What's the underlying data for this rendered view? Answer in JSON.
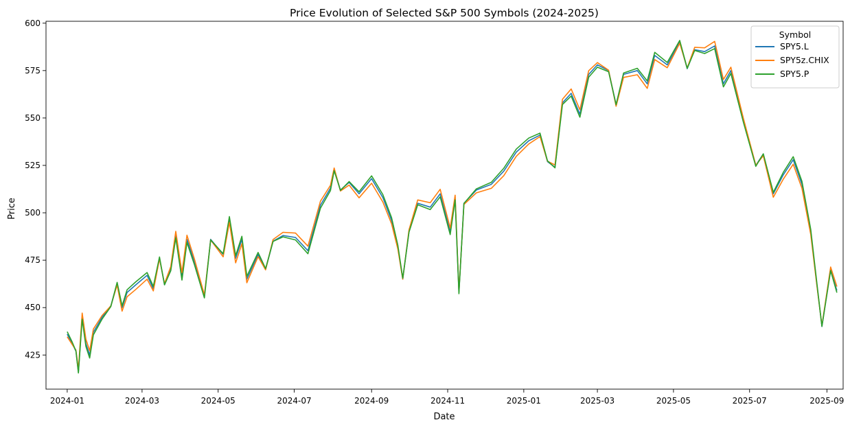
{
  "chart_data": {
    "type": "line",
    "title": "Price Evolution of Selected S&P 500 Symbols (2024-2025)",
    "xlabel": "Date",
    "ylabel": "Price",
    "xlim": [
      "2023-12-15",
      "2025-09-14"
    ],
    "ylim": [
      407,
      601
    ],
    "x_ticks": [
      "2024-01",
      "2024-03",
      "2024-05",
      "2024-07",
      "2024-09",
      "2024-11",
      "2025-01",
      "2025-03",
      "2025-05",
      "2025-07",
      "2025-09"
    ],
    "y_ticks": [
      425,
      450,
      475,
      500,
      525,
      550,
      575,
      600
    ],
    "grid": false,
    "legend": {
      "title": "Symbol",
      "placement": "top-right"
    },
    "series": [
      {
        "name": "SPY5.L",
        "color": "#1f77b4",
        "points": [
          [
            "2024-01-01",
            436
          ],
          [
            "2024-01-05",
            431
          ],
          [
            "2024-01-08",
            427
          ],
          [
            "2024-01-10",
            416
          ],
          [
            "2024-01-13",
            445
          ],
          [
            "2024-01-16",
            431
          ],
          [
            "2024-01-19",
            425
          ],
          [
            "2024-01-22",
            437
          ],
          [
            "2024-01-29",
            445
          ],
          [
            "2024-02-05",
            451
          ],
          [
            "2024-02-10",
            463
          ],
          [
            "2024-02-14",
            450
          ],
          [
            "2024-02-18",
            458
          ],
          [
            "2024-02-25",
            462
          ],
          [
            "2024-03-05",
            467
          ],
          [
            "2024-03-10",
            460
          ],
          [
            "2024-03-15",
            476
          ],
          [
            "2024-03-19",
            462
          ],
          [
            "2024-03-24",
            470
          ],
          [
            "2024-03-28",
            488
          ],
          [
            "2024-04-02",
            466
          ],
          [
            "2024-04-06",
            486
          ],
          [
            "2024-04-12",
            474
          ],
          [
            "2024-04-20",
            456
          ],
          [
            "2024-04-25",
            486
          ],
          [
            "2024-05-05",
            478
          ],
          [
            "2024-05-10",
            497
          ],
          [
            "2024-05-15",
            476
          ],
          [
            "2024-05-20",
            486
          ],
          [
            "2024-05-24",
            465
          ],
          [
            "2024-06-02",
            478
          ],
          [
            "2024-06-08",
            470
          ],
          [
            "2024-06-14",
            485
          ],
          [
            "2024-06-22",
            488
          ],
          [
            "2024-07-02",
            487
          ],
          [
            "2024-07-12",
            480
          ],
          [
            "2024-07-22",
            504
          ],
          [
            "2024-07-30",
            513
          ],
          [
            "2024-08-02",
            523
          ],
          [
            "2024-08-07",
            512
          ],
          [
            "2024-08-14",
            516
          ],
          [
            "2024-08-22",
            510
          ],
          [
            "2024-09-01",
            518
          ],
          [
            "2024-09-10",
            508
          ],
          [
            "2024-09-17",
            496
          ],
          [
            "2024-09-22",
            482
          ],
          [
            "2024-09-26",
            465
          ],
          [
            "2024-10-01",
            490
          ],
          [
            "2024-10-08",
            505
          ],
          [
            "2024-10-18",
            503
          ],
          [
            "2024-10-26",
            510
          ],
          [
            "2024-11-03",
            490
          ],
          [
            "2024-11-07",
            508
          ],
          [
            "2024-11-10",
            458
          ],
          [
            "2024-11-14",
            505
          ],
          [
            "2024-11-24",
            512
          ],
          [
            "2024-12-06",
            515
          ],
          [
            "2024-12-16",
            522
          ],
          [
            "2024-12-26",
            532
          ],
          [
            "2025-01-05",
            538
          ],
          [
            "2025-01-14",
            541
          ],
          [
            "2025-01-20",
            527
          ],
          [
            "2025-01-26",
            524
          ],
          [
            "2025-02-01",
            558
          ],
          [
            "2025-02-08",
            563
          ],
          [
            "2025-02-15",
            552
          ],
          [
            "2025-02-22",
            573
          ],
          [
            "2025-03-01",
            578
          ],
          [
            "2025-03-10",
            575
          ],
          [
            "2025-03-16",
            557
          ],
          [
            "2025-03-22",
            573
          ],
          [
            "2025-04-02",
            575
          ],
          [
            "2025-04-10",
            568
          ],
          [
            "2025-04-16",
            583
          ],
          [
            "2025-04-26",
            578
          ],
          [
            "2025-05-06",
            590
          ],
          [
            "2025-05-12",
            576
          ],
          [
            "2025-05-18",
            586
          ],
          [
            "2025-05-26",
            585
          ],
          [
            "2025-06-03",
            588
          ],
          [
            "2025-06-10",
            568
          ],
          [
            "2025-06-16",
            575
          ],
          [
            "2025-06-26",
            549
          ],
          [
            "2025-07-06",
            525
          ],
          [
            "2025-07-12",
            531
          ],
          [
            "2025-07-20",
            510
          ],
          [
            "2025-07-28",
            520
          ],
          [
            "2025-08-05",
            528
          ],
          [
            "2025-08-12",
            515
          ],
          [
            "2025-08-19",
            490
          ],
          [
            "2025-08-24",
            462
          ],
          [
            "2025-08-28",
            440
          ],
          [
            "2025-09-04",
            470
          ],
          [
            "2025-09-09",
            459
          ]
        ]
      },
      {
        "name": "SPY5z.CHIX",
        "color": "#ff7f0e",
        "points": []
      },
      {
        "name": "SPY5.P",
        "color": "#2ca02c",
        "points": []
      }
    ]
  }
}
